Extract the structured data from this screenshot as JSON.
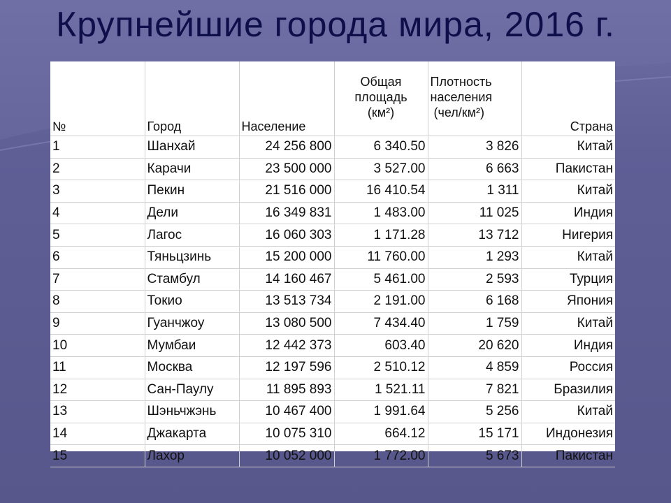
{
  "title": "Крупнейшие города мира, 2016 г.",
  "colors": {
    "background": "#5a5a8e",
    "title": "#0e0e4a",
    "table_bg": "#ffffff"
  },
  "table": {
    "headers": {
      "num": "№",
      "city": "Город",
      "population": "Население",
      "area_line1": "Общая",
      "area_line2": "площадь",
      "area_line3": "(км²)",
      "density_line1": "Плотность",
      "density_line2": "населения",
      "density_line3": " (чел/км²)",
      "country": "Страна"
    },
    "rows": [
      {
        "num": "1",
        "city": "Шанхай",
        "population": "24 256 800",
        "area": "6 340.50",
        "density": "3 826",
        "country": "Китай"
      },
      {
        "num": "2",
        "city": "Карачи",
        "population": "23 500 000",
        "area": "3 527.00",
        "density": "6 663",
        "country": "Пакистан"
      },
      {
        "num": "3",
        "city": "Пекин",
        "population": "21 516 000",
        "area": "16 410.54",
        "density": "1 311",
        "country": "Китай"
      },
      {
        "num": "4",
        "city": "Дели",
        "population": "16 349 831",
        "area": "1 483.00",
        "density": "11 025",
        "country": "Индия"
      },
      {
        "num": "5",
        "city": "Лагос",
        "population": "16 060 303",
        "area": "1 171.28",
        "density": "13 712",
        "country": "Нигерия"
      },
      {
        "num": "6",
        "city": "Тяньцзинь",
        "population": "15 200 000",
        "area": "11 760.00",
        "density": "1 293",
        "country": "Китай"
      },
      {
        "num": "7",
        "city": "Стамбул",
        "population": "14 160 467",
        "area": "5 461.00",
        "density": "2 593",
        "country": "Турция"
      },
      {
        "num": "8",
        "city": "Токио",
        "population": "13 513 734",
        "area": "2 191.00",
        "density": "6 168",
        "country": "Япония"
      },
      {
        "num": "9",
        "city": "Гуанчжоу",
        "population": "13 080 500",
        "area": "7 434.40",
        "density": "1 759",
        "country": "Китай"
      },
      {
        "num": "10",
        "city": "Мумбаи",
        "population": "12 442 373",
        "area": "603.40",
        "density": "20 620",
        "country": "Индия"
      },
      {
        "num": "11",
        "city": "Москва",
        "population": "12 197 596",
        "area": "2 510.12",
        "density": "4 859",
        "country": "Россия"
      },
      {
        "num": "12",
        "city": "Сан-Паулу",
        "population": "11 895 893",
        "area": "1 521.11",
        "density": "7 821",
        "country": "Бразилия"
      },
      {
        "num": "13",
        "city": "Шэньчжэнь",
        "population": "10 467 400",
        "area": "1 991.64",
        "density": "5 256",
        "country": "Китай"
      },
      {
        "num": "14",
        "city": "Джакарта",
        "population": "10 075 310",
        "area": "664.12",
        "density": "15 171",
        "country": "Индонезия"
      },
      {
        "num": "15",
        "city": "Лахор",
        "population": "10 052 000",
        "area": "1 772.00",
        "density": "5 673",
        "country": "Пакистан"
      }
    ]
  }
}
